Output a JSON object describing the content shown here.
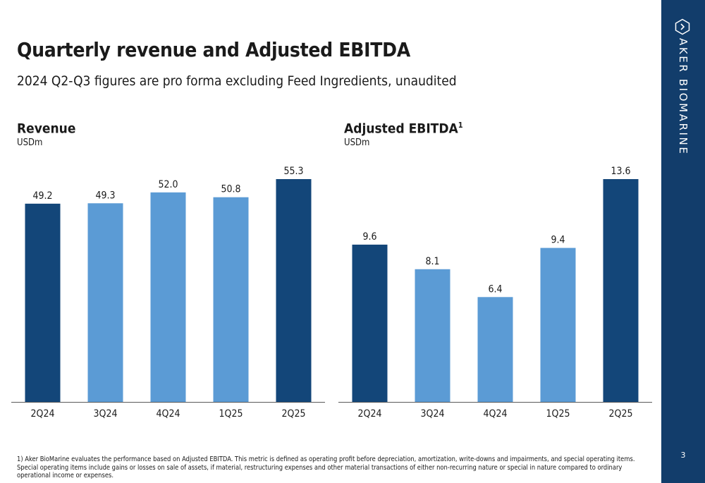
{
  "slide": {
    "title": "Quarterly revenue and Adjusted EBITDA",
    "subtitle": "2024 Q2-Q3 figures are pro forma excluding Feed Ingredients, unaudited",
    "footnote": "1) Aker BioMarine evaluates the performance based on Adjusted EBITDA. This metric is defined as operating profit before depreciation, amortization, write-downs and impairments, and special operating items. Special operating items include gains or losses on sale of assets, if material, restructuring expenses and other material transactions of either non-recurring nature or special in nature compared to ordinary operational income or expenses.",
    "page_number": "3"
  },
  "brand": {
    "name": "AKER BIOMARINE",
    "logo_icon": "hexagon-chevron-icon"
  },
  "colors": {
    "dark_bar": "#134679",
    "light_bar": "#5b9bd5",
    "sidebar": "#123d6b"
  },
  "chart_data": [
    {
      "type": "bar",
      "title": "Revenue",
      "title_sup": "",
      "unit": "USDm",
      "categories": [
        "2Q24",
        "3Q24",
        "4Q24",
        "1Q25",
        "2Q25"
      ],
      "values": [
        49.2,
        49.3,
        52.0,
        50.8,
        55.3
      ],
      "value_labels": [
        "49.2",
        "49.3",
        "52.0",
        "50.8",
        "55.3"
      ],
      "bar_colors": [
        "dark",
        "light",
        "light",
        "light",
        "dark"
      ],
      "ylim": [
        0,
        55.3
      ]
    },
    {
      "type": "bar",
      "title": "Adjusted EBITDA",
      "title_sup": "1",
      "unit": "USDm",
      "categories": [
        "2Q24",
        "3Q24",
        "4Q24",
        "1Q25",
        "2Q25"
      ],
      "values": [
        9.6,
        8.1,
        6.4,
        9.4,
        13.6
      ],
      "value_labels": [
        "9.6",
        "8.1",
        "6.4",
        "9.4",
        "13.6"
      ],
      "bar_colors": [
        "dark",
        "light",
        "light",
        "light",
        "dark"
      ],
      "ylim": [
        0,
        13.6
      ]
    }
  ]
}
